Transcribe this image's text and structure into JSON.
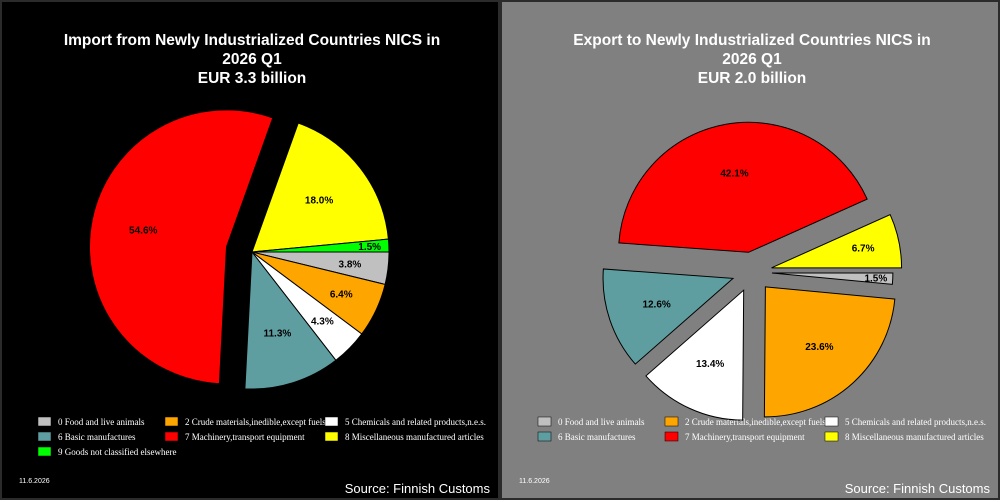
{
  "chart_data": [
    {
      "type": "pie",
      "title": [
        "Import from Newly Industrialized Countries NICS in",
        "2026 Q1",
        "EUR   3.3 billion"
      ],
      "slices": [
        {
          "label": "0 Food and live animals",
          "value": 3.8,
          "value_label": "3.8%",
          "color": "#c0c0c0"
        },
        {
          "label": "2 Crude materials,inedible,except fuels",
          "value": 6.4,
          "value_label": "6.4%",
          "color": "#ffa500"
        },
        {
          "label": "5 Chemicals and related products,n.e.s.",
          "value": 4.3,
          "value_label": "4.3%",
          "color": "#ffffff"
        },
        {
          "label": "6 Basic manufactures",
          "value": 11.3,
          "value_label": "11.3%",
          "color": "#5f9ea0"
        },
        {
          "label": "7 Machinery,transport equipment",
          "value": 54.6,
          "value_label": "54.6%",
          "color": "#ff0000"
        },
        {
          "label": "8 Miscellaneous manufactured articles",
          "value": 18.0,
          "value_label": "18.0%",
          "color": "#ffff00"
        },
        {
          "label": "9 Goods not classified elsewhere",
          "value": 1.5,
          "value_label": "1.5%",
          "color": "#00ff00"
        }
      ],
      "date": "11.6.2026",
      "source": "Source: Finnish Customs",
      "background": "#000000"
    },
    {
      "type": "pie",
      "title": [
        "Export to Newly Industrialized Countries NICS in",
        "2026 Q1",
        "EUR   2.0 billion"
      ],
      "slices": [
        {
          "label": "0 Food and live animals",
          "value": 1.5,
          "value_label": "1.5%",
          "color": "#c0c0c0"
        },
        {
          "label": "2 Crude materials,inedible,except fuels",
          "value": 23.6,
          "value_label": "23.6%",
          "color": "#ffa500"
        },
        {
          "label": "5 Chemicals and related products,n.e.s.",
          "value": 13.4,
          "value_label": "13.4%",
          "color": "#ffffff"
        },
        {
          "label": "6 Basic manufactures",
          "value": 12.6,
          "value_label": "12.6%",
          "color": "#5f9ea0"
        },
        {
          "label": "7 Machinery,transport equipment",
          "value": 42.1,
          "value_label": "42.1%",
          "color": "#ff0000"
        },
        {
          "label": "8 Miscellaneous manufactured articles",
          "value": 6.7,
          "value_label": "6.7%",
          "color": "#ffff00"
        }
      ],
      "date": "11.6.2026",
      "source": "Source: Finnish Customs",
      "background": "#808080"
    }
  ]
}
